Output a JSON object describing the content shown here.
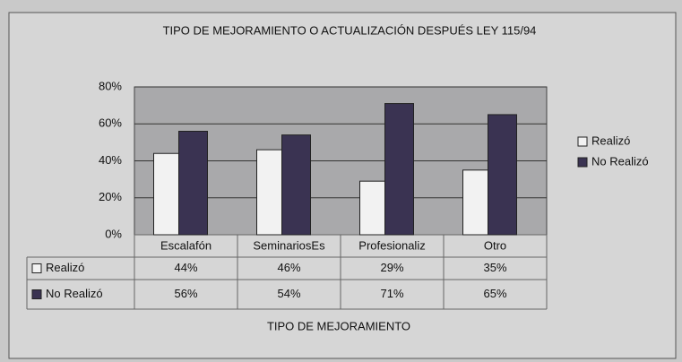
{
  "chart_data": {
    "type": "bar",
    "title": "TIPO DE MEJORAMIENTO O ACTUALIZACIÓN DESPUÉS LEY 115/94",
    "x_label": "TIPO DE MEJORAMIENTO",
    "categories": [
      "Escalafón",
      "SeminariosEs",
      "Profesionaliz",
      "Otro"
    ],
    "series": [
      {
        "name": "Realizó",
        "color": "#f2f2f2",
        "values": [
          44,
          46,
          29,
          35
        ],
        "value_labels": [
          "44%",
          "46%",
          "29%",
          "35%"
        ]
      },
      {
        "name": "No Realizó",
        "color": "#3a3352",
        "values": [
          56,
          54,
          71,
          65
        ],
        "value_labels": [
          "56%",
          "54%",
          "71%",
          "65%"
        ]
      }
    ],
    "ylim": [
      0,
      80
    ],
    "yticks": [
      {
        "value": 0,
        "label": "0%"
      },
      {
        "value": 20,
        "label": "20%"
      },
      {
        "value": 40,
        "label": "40%"
      },
      {
        "value": 60,
        "label": "60%"
      },
      {
        "value": 80,
        "label": "80%"
      }
    ],
    "grid": true,
    "legend": "right"
  }
}
